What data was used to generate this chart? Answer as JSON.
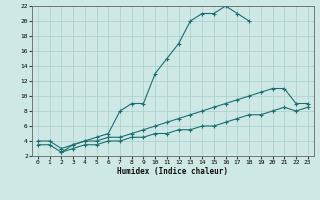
{
  "xlabel": "Humidex (Indice chaleur)",
  "bg_color": "#cde8e5",
  "grid_color": "#aacfcc",
  "line_color": "#1a7070",
  "xlim": [
    -0.5,
    23.5
  ],
  "ylim": [
    2,
    22
  ],
  "xticks": [
    0,
    1,
    2,
    3,
    4,
    5,
    6,
    7,
    8,
    9,
    10,
    11,
    12,
    13,
    14,
    15,
    16,
    17,
    18,
    19,
    20,
    21,
    22,
    23
  ],
  "yticks": [
    2,
    4,
    6,
    8,
    10,
    12,
    14,
    16,
    18,
    20,
    22
  ],
  "line1_x": [
    2,
    3,
    4,
    5,
    6,
    7,
    8,
    9,
    10,
    11,
    12,
    13,
    14,
    15,
    16,
    17,
    18
  ],
  "line1_y": [
    2.5,
    3.5,
    4,
    4.5,
    5,
    8,
    9,
    9,
    13,
    15,
    17,
    20,
    21,
    21,
    22,
    21,
    20
  ],
  "line2_x": [
    0,
    1,
    2,
    3,
    4,
    5,
    6,
    7,
    8,
    9,
    10,
    11,
    12,
    13,
    14,
    15,
    16,
    17,
    18,
    19,
    20,
    21,
    22,
    23
  ],
  "line2_y": [
    4,
    4,
    3,
    3.5,
    4,
    4,
    4.5,
    4.5,
    5,
    5.5,
    6,
    6.5,
    7,
    7.5,
    8,
    8.5,
    9,
    9.5,
    10,
    10.5,
    11,
    11,
    9,
    9
  ],
  "line3_x": [
    0,
    1,
    2,
    3,
    4,
    5,
    6,
    7,
    8,
    9,
    10,
    11,
    12,
    13,
    14,
    15,
    16,
    17,
    18,
    19,
    20,
    21,
    22,
    23
  ],
  "line3_y": [
    3.5,
    3.5,
    2.5,
    3,
    3.5,
    3.5,
    4,
    4,
    4.5,
    4.5,
    5,
    5,
    5.5,
    5.5,
    6,
    6,
    6.5,
    7,
    7.5,
    7.5,
    8,
    8.5,
    8,
    8.5
  ]
}
